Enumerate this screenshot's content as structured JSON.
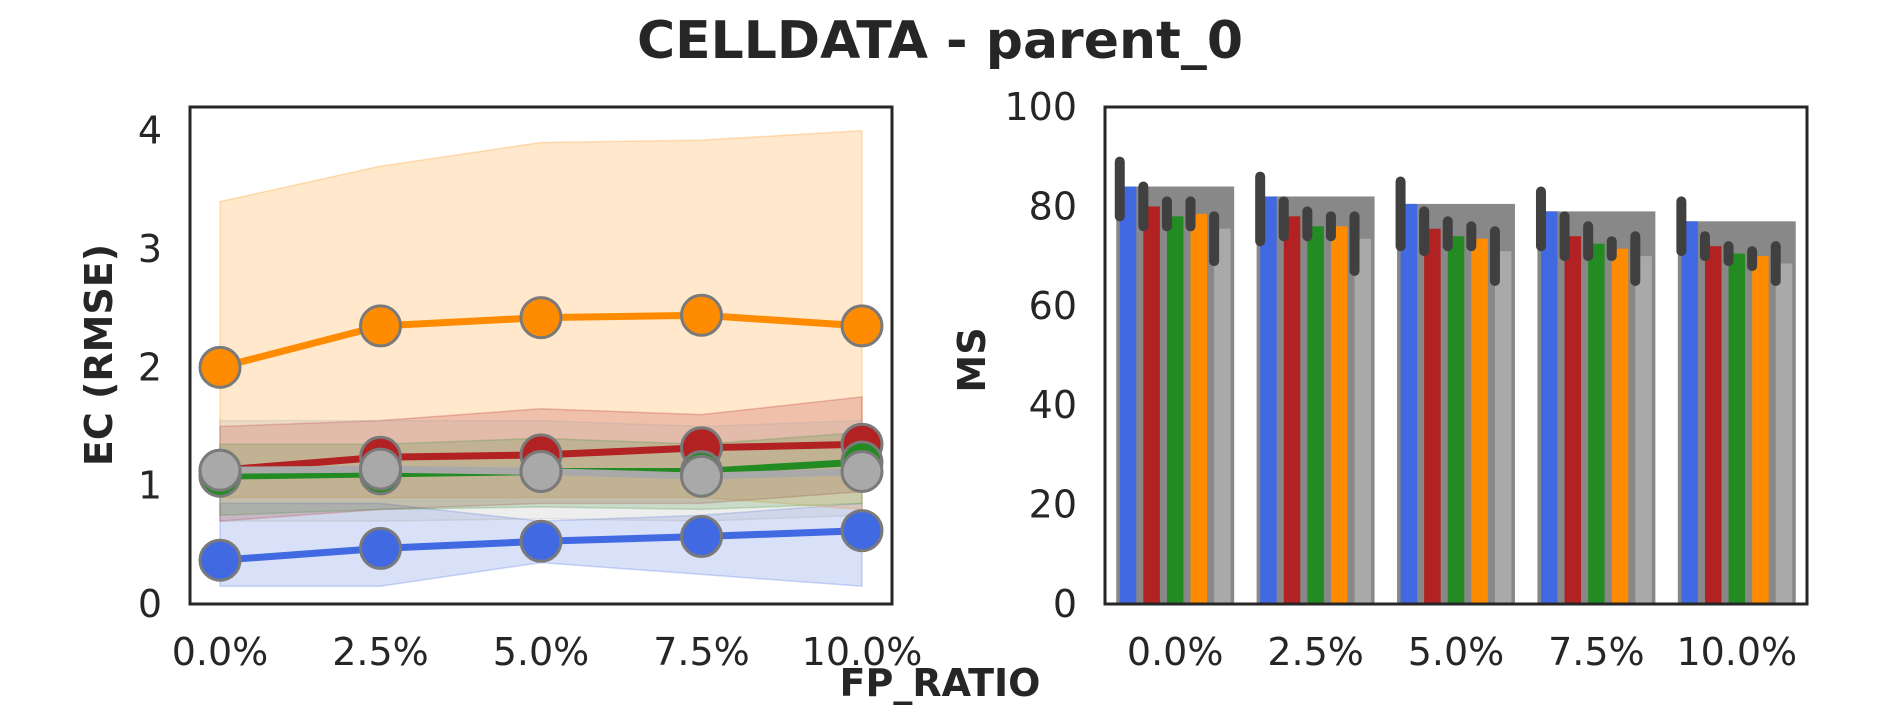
{
  "figure": {
    "title": "CELLDATA - parent_0",
    "shared_xlabel": "FP_RATIO"
  },
  "chart_data": [
    {
      "type": "line",
      "ylabel": "EC (RMSE)",
      "xlabel": "",
      "categories": [
        "0.0%",
        "2.5%",
        "5.0%",
        "7.5%",
        "10.0%"
      ],
      "yticks": [
        "0",
        "1",
        "2",
        "3",
        "4"
      ],
      "ylim": [
        0,
        4.2
      ],
      "grid": false,
      "legend": "none",
      "series": [
        {
          "color": "#4169e1",
          "values": [
            0.37,
            0.47,
            0.53,
            0.57,
            0.62
          ],
          "band_low": [
            0.15,
            0.15,
            0.35,
            0.25,
            0.15
          ],
          "band_high": [
            0.85,
            0.85,
            0.7,
            0.75,
            0.85
          ]
        },
        {
          "color": "#ff8c00",
          "values": [
            2.0,
            2.35,
            2.42,
            2.44,
            2.35
          ],
          "band_low": [
            0.9,
            0.9,
            0.9,
            0.9,
            0.8
          ],
          "band_high": [
            3.4,
            3.7,
            3.9,
            3.92,
            4.0
          ]
        },
        {
          "color": "#b22222",
          "values": [
            1.13,
            1.24,
            1.26,
            1.32,
            1.35
          ],
          "band_low": [
            0.7,
            0.8,
            0.85,
            0.85,
            0.95
          ],
          "band_high": [
            1.5,
            1.55,
            1.65,
            1.6,
            1.75
          ]
        },
        {
          "color": "#228b22",
          "values": [
            1.08,
            1.1,
            1.12,
            1.12,
            1.2
          ],
          "band_low": [
            0.75,
            0.8,
            0.82,
            0.8,
            0.85
          ],
          "band_high": [
            1.35,
            1.35,
            1.4,
            1.35,
            1.45
          ]
        },
        {
          "color": "#a9a9a9",
          "values": [
            1.13,
            1.14,
            1.12,
            1.08,
            1.12
          ],
          "band_low": [
            0.7,
            0.7,
            0.72,
            0.7,
            0.75
          ],
          "band_high": [
            1.55,
            1.55,
            1.55,
            1.5,
            1.55
          ]
        }
      ]
    },
    {
      "type": "bar",
      "ylabel": "MS",
      "xlabel": "",
      "categories": [
        "0.0%",
        "2.5%",
        "5.0%",
        "7.5%",
        "10.0%"
      ],
      "yticks": [
        "0",
        "20",
        "40",
        "60",
        "80",
        "100"
      ],
      "ylim": [
        0,
        100
      ],
      "grid": false,
      "legend": "none",
      "background_bars": {
        "color": "#888888",
        "values": [
          84,
          82,
          80.5,
          79,
          77
        ]
      },
      "series": [
        {
          "color": "#4169e1",
          "values": [
            84,
            82,
            80.5,
            79,
            77
          ],
          "err_low": [
            78,
            73,
            72,
            72,
            71
          ],
          "err_high": [
            89,
            86,
            85,
            83,
            81
          ]
        },
        {
          "color": "#b22222",
          "values": [
            80,
            78,
            75.5,
            74,
            72
          ],
          "err_low": [
            76,
            74,
            71,
            70,
            70
          ],
          "err_high": [
            84,
            81,
            79,
            78,
            74
          ]
        },
        {
          "color": "#228b22",
          "values": [
            78,
            76,
            74,
            72.5,
            70.5
          ],
          "err_low": [
            76,
            74,
            72,
            70,
            69
          ],
          "err_high": [
            81,
            79,
            77,
            76,
            72
          ]
        },
        {
          "color": "#ff8c00",
          "values": [
            78.5,
            76,
            73.5,
            71.5,
            70
          ],
          "err_low": [
            76,
            74,
            72,
            70,
            68
          ],
          "err_high": [
            81,
            78,
            76,
            73,
            71
          ]
        },
        {
          "color": "#a9a9a9",
          "values": [
            75.5,
            73.5,
            71,
            70,
            68.5
          ],
          "err_low": [
            69,
            67,
            65,
            65,
            65
          ],
          "err_high": [
            78,
            78,
            75,
            74,
            72
          ]
        }
      ],
      "errbar_color": "#404040"
    }
  ]
}
